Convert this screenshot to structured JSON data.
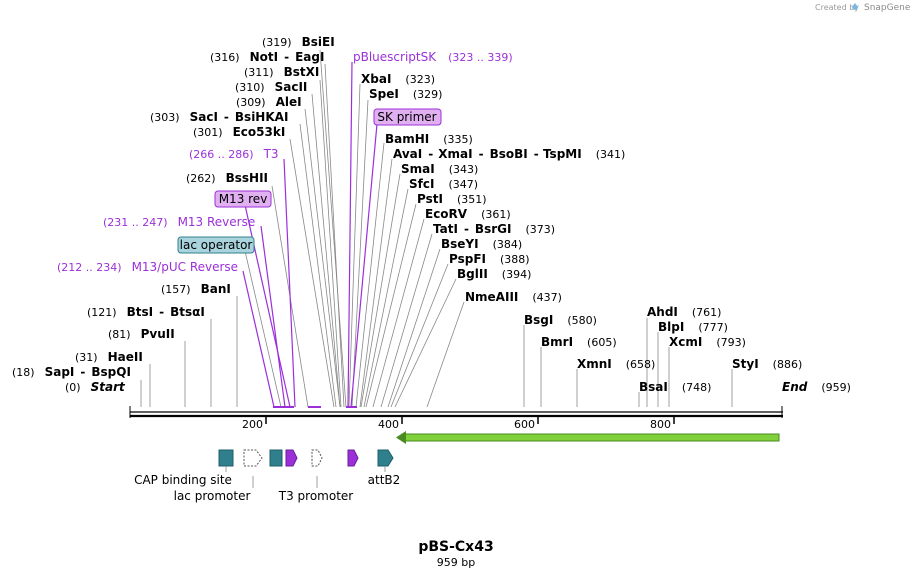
{
  "header": {
    "created_by": "Created by",
    "brand": "SnapGene"
  },
  "map": {
    "name": "pBS-Cx43",
    "length_label": "959 bp",
    "length": 959,
    "ticks": [
      "200",
      "400",
      "600",
      "800"
    ]
  },
  "sites": [
    {
      "pos": "(319)",
      "name": "BsiEI"
    },
    {
      "pos": "(316)",
      "name": "NotI",
      "name2": "EagI"
    },
    {
      "pos": "(311)",
      "name": "BstXI"
    },
    {
      "pos": "(310)",
      "name": "SacII"
    },
    {
      "pos": "(309)",
      "name": "AleI"
    },
    {
      "pos": "(303)",
      "name": "SacI",
      "name2": "BsiHKAI"
    },
    {
      "pos": "(301)",
      "name": "Eco53kI"
    },
    {
      "pos": "(262)",
      "name": "BssHII"
    },
    {
      "pos": "(157)",
      "name": "BanI"
    },
    {
      "pos": "(121)",
      "name": "BtsI",
      "name2": "BtsαI"
    },
    {
      "pos": "(81)",
      "name": "PvuII"
    },
    {
      "pos": "(31)",
      "name": "HaeII"
    },
    {
      "pos": "(18)",
      "name": "SapI",
      "name2": "BspQI"
    },
    {
      "pos": "(0)",
      "name": "Start"
    },
    {
      "name": "XbaI",
      "pos": "(323)"
    },
    {
      "name": "SpeI",
      "pos": "(329)"
    },
    {
      "name": "BamHI",
      "pos": "(335)"
    },
    {
      "name": "AvaI",
      "name2": "XmaI",
      "name3": "BsoBI",
      "name4": "TspMI",
      "pos": "(341)"
    },
    {
      "name": "SmaI",
      "pos": "(343)"
    },
    {
      "name": "SfcI",
      "pos": "(347)"
    },
    {
      "name": "PstI",
      "pos": "(351)"
    },
    {
      "name": "EcoRV",
      "pos": "(361)"
    },
    {
      "name": "TatI",
      "name2": "BsrGI",
      "pos": "(373)"
    },
    {
      "name": "BseYI",
      "pos": "(384)"
    },
    {
      "name": "PspFI",
      "pos": "(388)"
    },
    {
      "name": "BglII",
      "pos": "(394)"
    },
    {
      "name": "NmeAIII",
      "pos": "(437)"
    },
    {
      "name": "BsgI",
      "pos": "(580)"
    },
    {
      "name": "BmrI",
      "pos": "(605)"
    },
    {
      "name": "XmnI",
      "pos": "(658)"
    },
    {
      "name": "BsaI",
      "pos": "(748)"
    },
    {
      "name": "AhdI",
      "pos": "(761)"
    },
    {
      "name": "BlpI",
      "pos": "(777)"
    },
    {
      "name": "XcmI",
      "pos": "(793)"
    },
    {
      "name": "StyI",
      "pos": "(886)"
    },
    {
      "name": "End",
      "pos": "(959)"
    }
  ],
  "features_above": [
    {
      "name": "pBluescriptSK",
      "range": "(323 .. 339)"
    },
    {
      "name": "SK primer"
    },
    {
      "name": "T3",
      "range": "(266 .. 286)"
    },
    {
      "name": "M13 rev"
    },
    {
      "name": "M13 Reverse",
      "range": "(231 .. 247)"
    },
    {
      "name": "lac operator"
    },
    {
      "name": "M13/pUC Reverse",
      "range": "(212 .. 234)"
    }
  ],
  "features_below": [
    {
      "name": "CAP binding site"
    },
    {
      "name": "lac promoter"
    },
    {
      "name": "T3 promoter"
    },
    {
      "name": "attB2"
    }
  ],
  "colors": {
    "feature_purple": "#9b30d9",
    "primer_fill": "#e0b0f0",
    "operator_fill": "#a9d4dd",
    "teal": "#2f7f8c",
    "arrow_green": "#7fd03a"
  }
}
